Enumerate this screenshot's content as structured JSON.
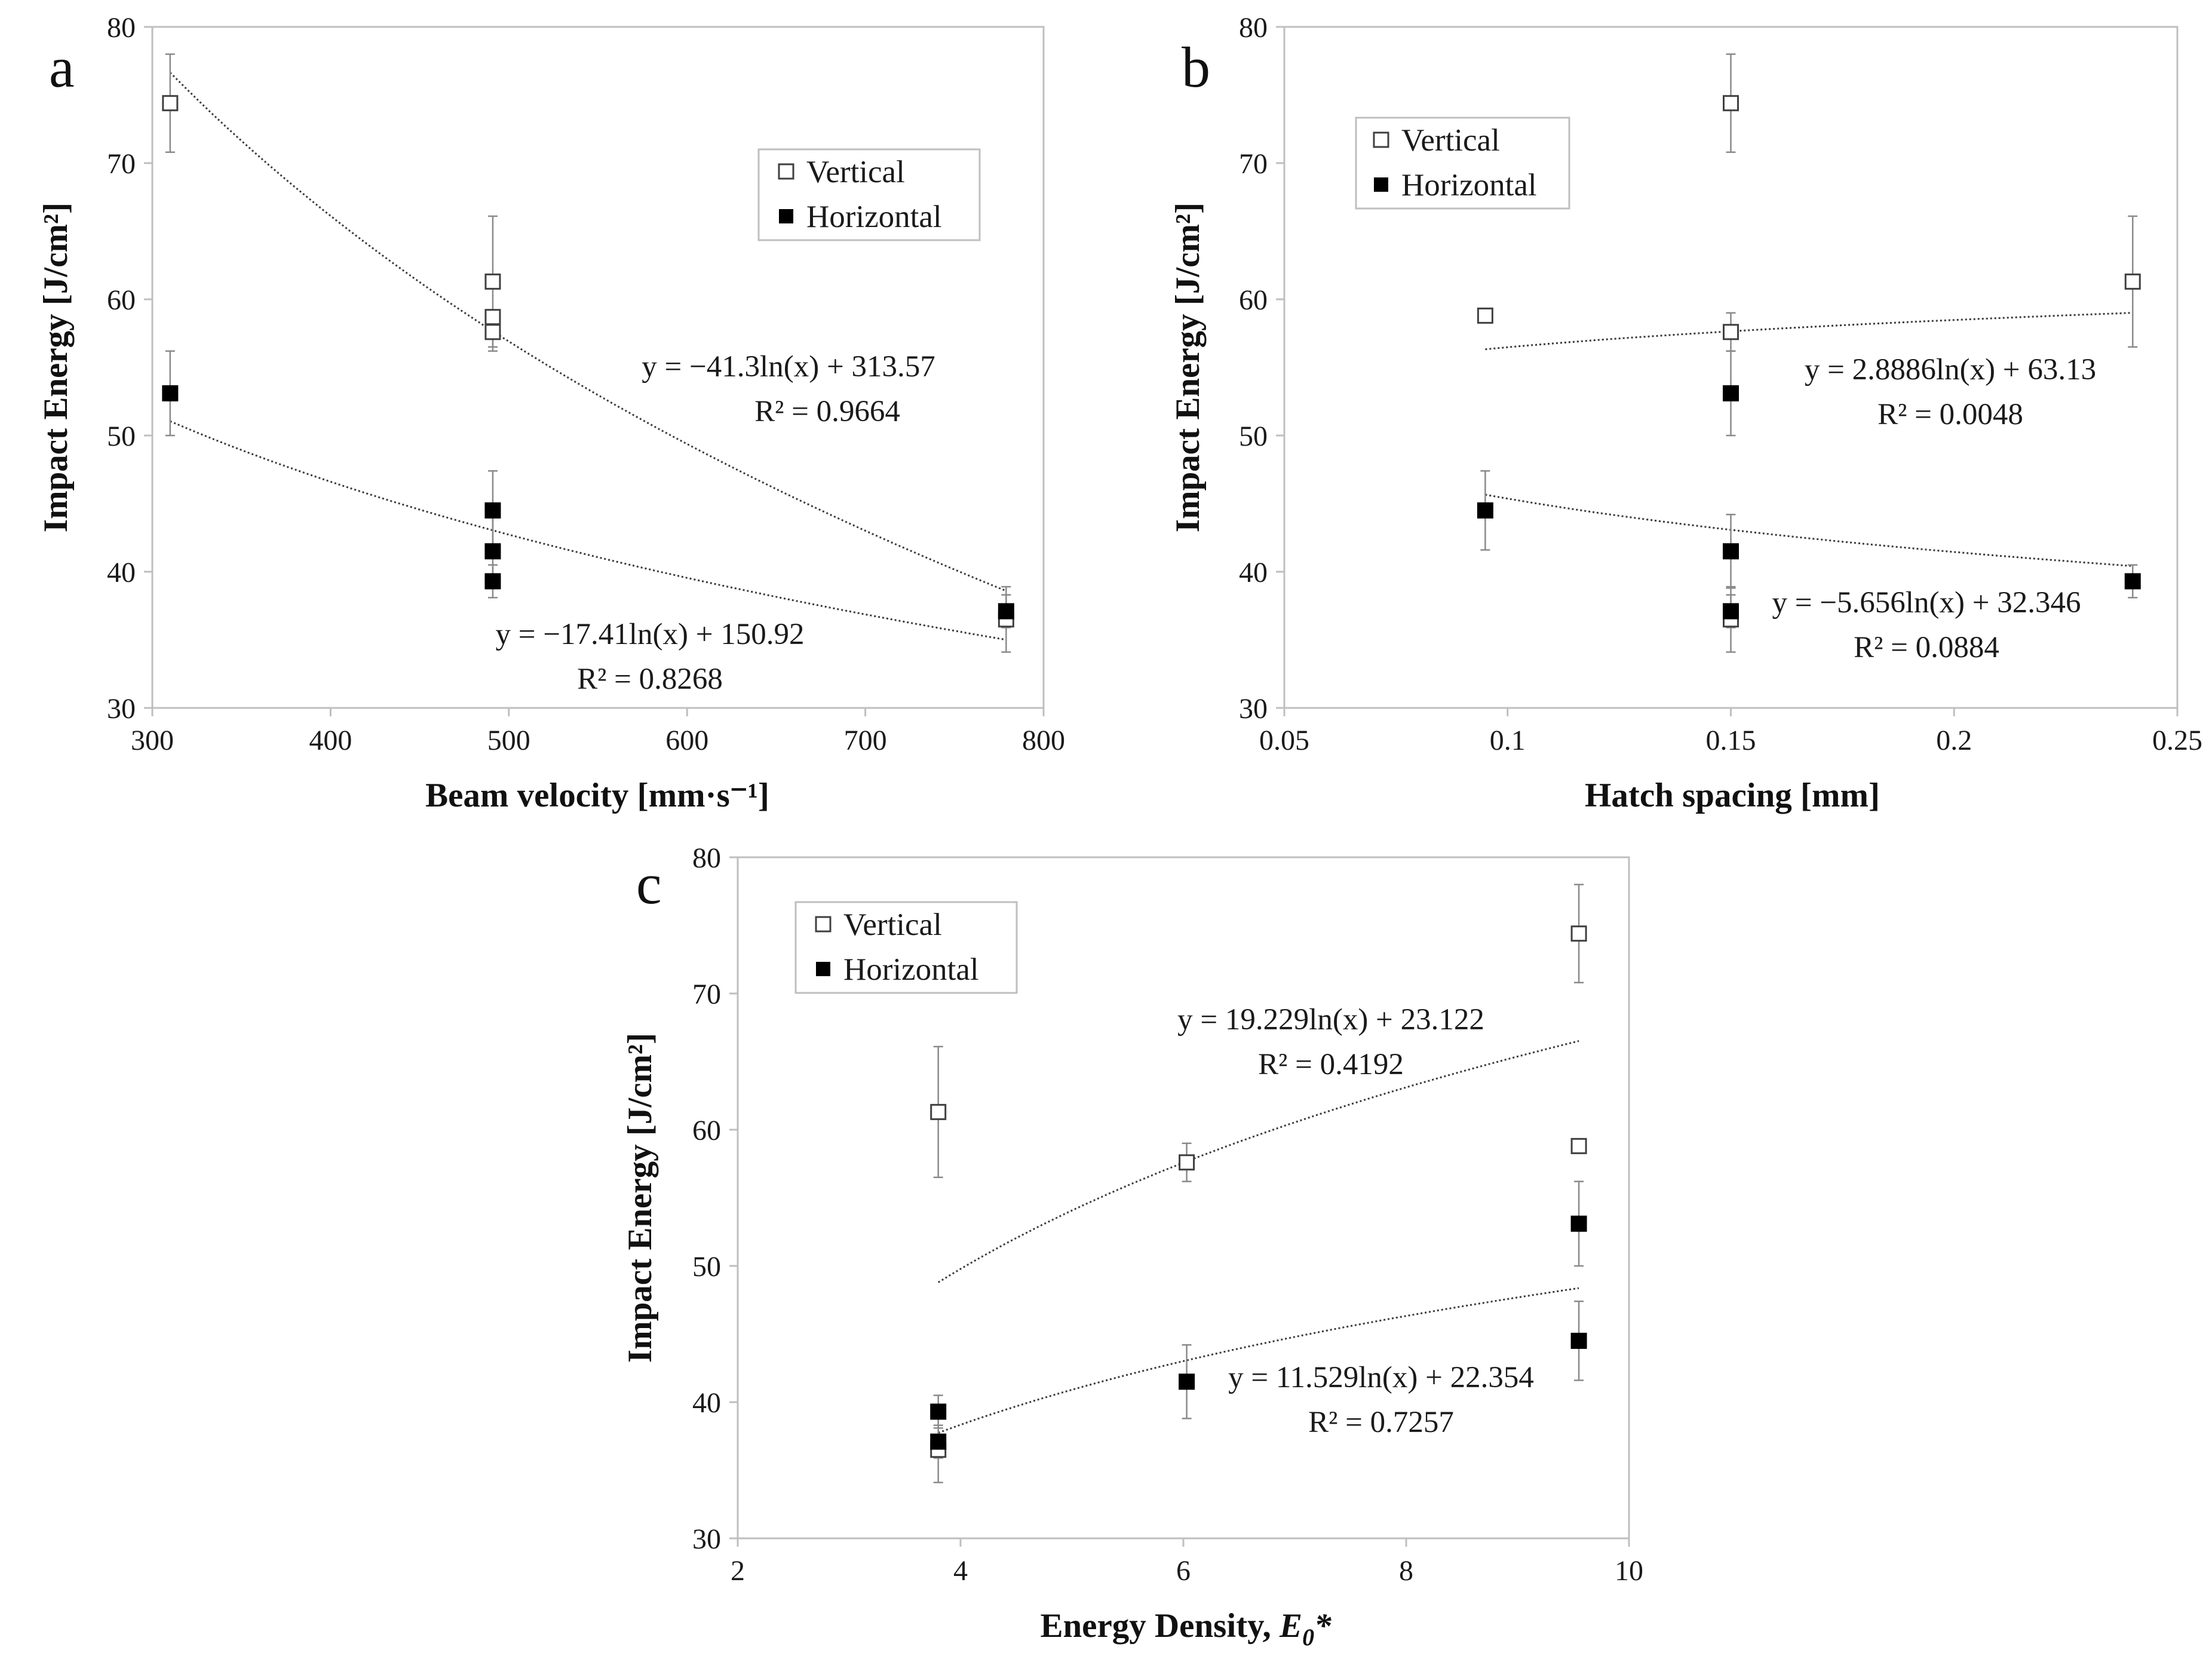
{
  "colors": {
    "axis": "#bfbfbf",
    "marker_edge": "#404040",
    "filled": "#000000",
    "trend": "#3a3a3a",
    "errbar": "#8a8a8a"
  },
  "chart_data": [
    {
      "panel": "a",
      "type": "scatter",
      "xlabel": "Beam velocity [mm·s⁻¹]",
      "ylabel": "Impact Energy [J/cm²]",
      "xlim": [
        300,
        800
      ],
      "ylim": [
        30,
        80
      ],
      "xticks": [
        300,
        400,
        500,
        600,
        700,
        800
      ],
      "yticks": [
        30,
        40,
        50,
        60,
        70,
        80
      ],
      "xtick_labels": [
        "300",
        "400",
        "500",
        "600",
        "700",
        "800"
      ],
      "ytick_labels": [
        "30",
        "40",
        "50",
        "60",
        "70",
        "80"
      ],
      "legend": [
        "Vertical",
        "Horizontal"
      ],
      "legend_position": "upper-right",
      "series": [
        {
          "name": "Vertical",
          "marker": "open-square",
          "points": [
            [
              310,
              74.4,
              3.6
            ],
            [
              491,
              61.3,
              4.8
            ],
            [
              491,
              58.7,
              0.5
            ],
            [
              491,
              57.6,
              1.4
            ],
            [
              779,
              36.5,
              2.4
            ]
          ],
          "trend": {
            "a": -41.3,
            "b": 313.57,
            "xrange": [
              310,
              779
            ]
          },
          "equation": "y = −41.3ln(x) + 313.57",
          "r2": "R² = 0.9664"
        },
        {
          "name": "Horizontal",
          "marker": "filled-square",
          "points": [
            [
              310,
              53.1,
              3.1
            ],
            [
              491,
              44.5,
              2.9
            ],
            [
              491,
              41.5,
              2.7
            ],
            [
              491,
              39.3,
              1.2
            ],
            [
              779,
              37.1,
              1.2
            ]
          ],
          "trend": {
            "a": -17.41,
            "b": 150.92,
            "xrange": [
              310,
              779
            ]
          },
          "equation": "y = −17.41ln(x) + 150.92",
          "r2": "R² = 0.8268"
        }
      ]
    },
    {
      "panel": "b",
      "type": "scatter",
      "xlabel": "Hatch spacing [mm]",
      "ylabel": "Impact Energy [J/cm²]",
      "xlim": [
        0.05,
        0.25
      ],
      "ylim": [
        30,
        80
      ],
      "xticks": [
        0.05,
        0.1,
        0.15,
        0.2,
        0.25
      ],
      "yticks": [
        30,
        40,
        50,
        60,
        70,
        80
      ],
      "xtick_labels": [
        "0.05",
        "0.1",
        "0.15",
        "0.2",
        "0.25"
      ],
      "ytick_labels": [
        "30",
        "40",
        "50",
        "60",
        "70",
        "80"
      ],
      "legend": [
        "Vertical",
        "Horizontal"
      ],
      "legend_position": "upper-left",
      "series": [
        {
          "name": "Vertical",
          "marker": "open-square",
          "points": [
            [
              0.095,
              58.8,
              0.5
            ],
            [
              0.15,
              74.4,
              3.6
            ],
            [
              0.15,
              57.6,
              1.4
            ],
            [
              0.15,
              36.5,
              2.4
            ],
            [
              0.24,
              61.3,
              4.8
            ]
          ],
          "trend": {
            "a": 2.8886,
            "b": 63.13,
            "xrange": [
              0.095,
              0.24
            ]
          },
          "equation": "y = 2.8886ln(x) + 63.13",
          "r2": "R² = 0.0048"
        },
        {
          "name": "Horizontal",
          "marker": "filled-square",
          "points": [
            [
              0.095,
              44.5,
              2.9
            ],
            [
              0.15,
              53.1,
              3.1
            ],
            [
              0.15,
              41.5,
              2.7
            ],
            [
              0.15,
              37.1,
              1.2
            ],
            [
              0.24,
              39.3,
              1.2
            ]
          ],
          "trend": {
            "a": -5.656,
            "b": 32.346,
            "xrange": [
              0.095,
              0.24
            ]
          },
          "equation": "y = −5.656ln(x) + 32.346",
          "r2": "R² = 0.0884"
        }
      ]
    },
    {
      "panel": "c",
      "type": "scatter",
      "xlabel_main": "Energy Density, ",
      "xlabel_sym": "E",
      "xlabel_sub": "0",
      "xlabel_sup": "*",
      "ylabel": "Impact Energy [J/cm²]",
      "xlim": [
        2,
        10
      ],
      "ylim": [
        30,
        80
      ],
      "xticks": [
        2,
        4,
        6,
        8,
        10
      ],
      "yticks": [
        30,
        40,
        50,
        60,
        70,
        80
      ],
      "xtick_labels": [
        "2",
        "4",
        "6",
        "8",
        "10"
      ],
      "ytick_labels": [
        "30",
        "40",
        "50",
        "60",
        "70",
        "80"
      ],
      "legend": [
        "Vertical",
        "Horizontal"
      ],
      "legend_position": "upper-left",
      "series": [
        {
          "name": "Vertical",
          "marker": "open-square",
          "points": [
            [
              3.8,
              61.3,
              4.8
            ],
            [
              3.8,
              36.5,
              2.4
            ],
            [
              6.03,
              57.6,
              1.4
            ],
            [
              9.55,
              74.4,
              3.6
            ],
            [
              9.55,
              58.8,
              0.5
            ]
          ],
          "trend": {
            "a": 19.229,
            "b": 23.122,
            "xrange": [
              3.8,
              9.55
            ]
          },
          "equation": "y = 19.229ln(x) + 23.122",
          "r2": "R² = 0.4192"
        },
        {
          "name": "Horizontal",
          "marker": "filled-square",
          "points": [
            [
              3.8,
              39.3,
              1.2
            ],
            [
              3.8,
              37.1,
              1.2
            ],
            [
              6.03,
              41.5,
              2.7
            ],
            [
              9.55,
              53.1,
              3.1
            ],
            [
              9.55,
              44.5,
              2.9
            ]
          ],
          "trend": {
            "a": 11.529,
            "b": 22.354,
            "xrange": [
              3.8,
              9.55
            ]
          },
          "equation": "y = 11.529ln(x) + 22.354",
          "r2": "R² = 0.7257"
        }
      ]
    }
  ]
}
